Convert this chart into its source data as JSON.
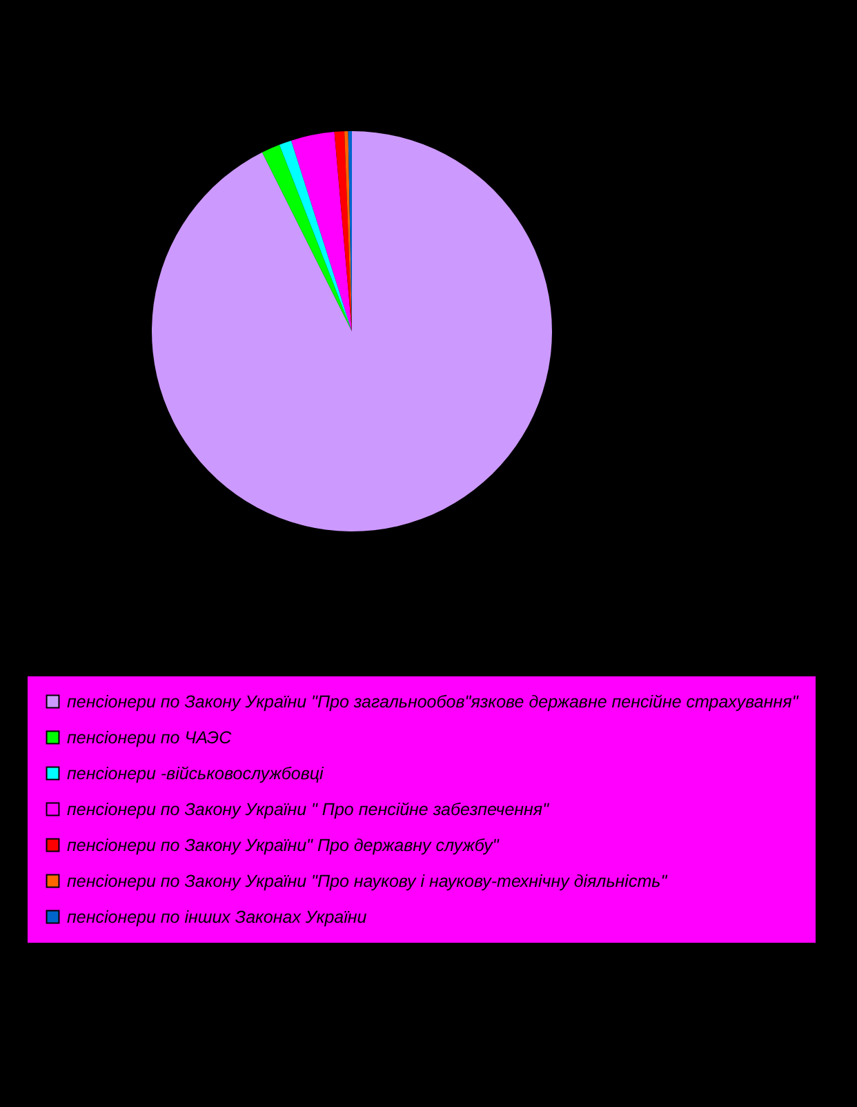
{
  "chart_data": {
    "type": "pie",
    "categories": [
      "пенсіонери по Закону України \"Про загальнообов\"язкове державне пенсійне страхування\"",
      "пенсіонери по ЧАЭС",
      "пенсіонери -військовослужбовці",
      "пенсіонери по Закону України  \" Про пенсійне забезпечення\"",
      "пенсіонери  по Закону України\" Про державну службу\"",
      "пенсіонери по Закону України \"Про наукову і наукову-технічну діяльність\"",
      "пенсіонери по інших Законах України"
    ],
    "values": [
      92.6,
      1.5,
      1,
      3.5,
      0.8,
      0.3,
      0.3
    ],
    "colors": [
      "#cc99ff",
      "#00ff00",
      "#00ffff",
      "#ff00ff",
      "#ff0000",
      "#ff6600",
      "#0066cc"
    ],
    "legend": "bottom"
  }
}
